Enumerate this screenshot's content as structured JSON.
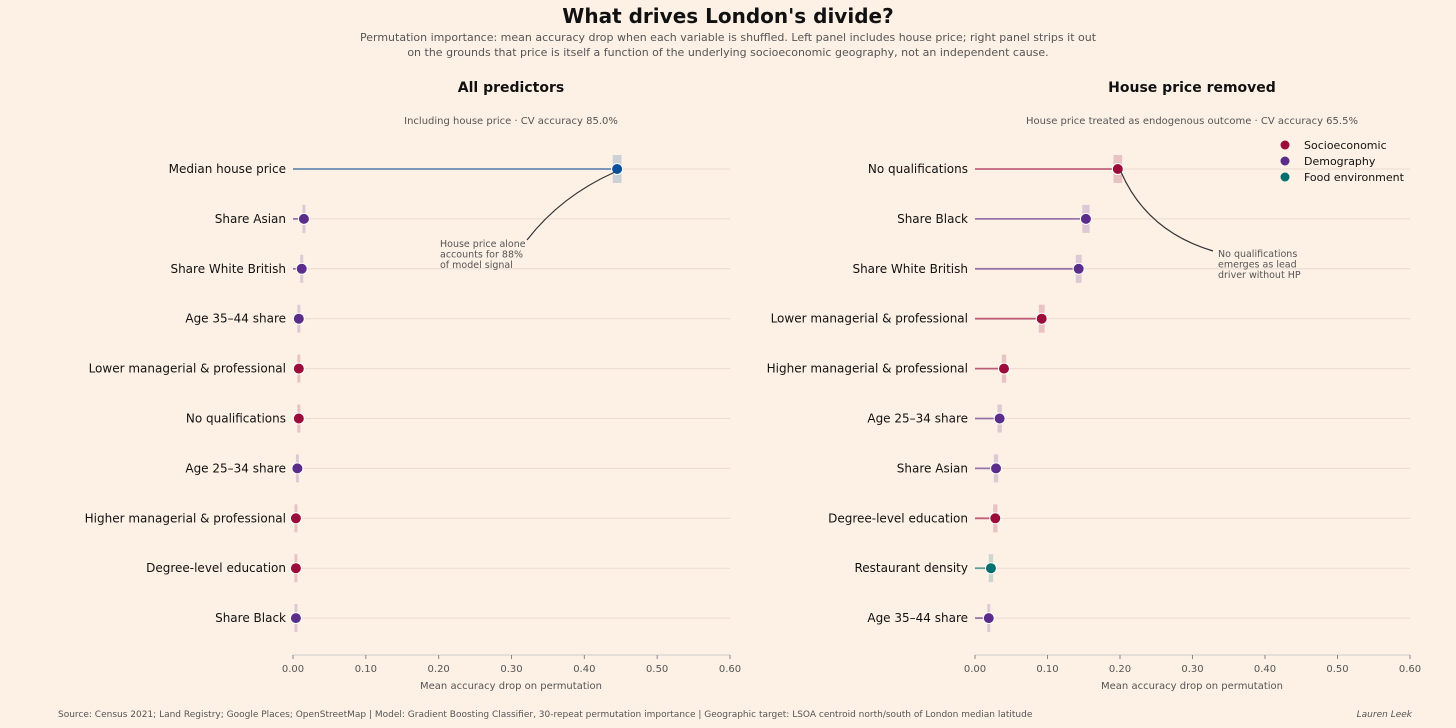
{
  "title": "What drives London's divide?",
  "subtitle_lines": [
    "Permutation importance: mean accuracy drop when each variable is shuffled.  Left panel includes house price; right panel strips it out",
    "on the grounds that price is itself a function of the underlying socioeconomic geography, not an independent cause."
  ],
  "footer": {
    "source": "Source: Census 2021; Land Registry; Google Places; OpenStreetMap  | Model: Gradient Boosting Classifier, 30-repeat permutation importance  | Geographic target: LSOA centroid north/south of London median latitude",
    "author": "Lauren Leek"
  },
  "colors": {
    "Socioeconomic": "#9b0c3b",
    "Demography": "#5b2d8a",
    "Food environment": "#00706e",
    "House price": "#0b4f9c"
  },
  "chart_data": [
    {
      "type": "dot",
      "title": "All predictors",
      "subtitle": "Including house price  ·  CV accuracy 85.0%",
      "xlabel": "Mean accuracy drop on permutation",
      "xlim": [
        0,
        0.6
      ],
      "xticks": [
        "0.00",
        "0.10",
        "0.20",
        "0.30",
        "0.40",
        "0.50",
        "0.60"
      ],
      "annotation": {
        "lines": [
          "House price alone",
          "accounts for 88%",
          "of model signal"
        ]
      },
      "items": [
        {
          "label": "Median house price",
          "value": 0.445,
          "std": 0.006,
          "group": "House price"
        },
        {
          "label": "Share Asian",
          "value": 0.015,
          "std": 0.002,
          "group": "Demography"
        },
        {
          "label": "Share White British",
          "value": 0.012,
          "std": 0.002,
          "group": "Demography"
        },
        {
          "label": "Age 35–44 share",
          "value": 0.008,
          "std": 0.002,
          "group": "Demography"
        },
        {
          "label": "Lower managerial & professional",
          "value": 0.008,
          "std": 0.002,
          "group": "Socioeconomic"
        },
        {
          "label": "No qualifications",
          "value": 0.008,
          "std": 0.002,
          "group": "Socioeconomic"
        },
        {
          "label": "Age 25–34 share",
          "value": 0.006,
          "std": 0.002,
          "group": "Demography"
        },
        {
          "label": "Higher managerial & professional",
          "value": 0.004,
          "std": 0.002,
          "group": "Socioeconomic"
        },
        {
          "label": "Degree-level education",
          "value": 0.004,
          "std": 0.002,
          "group": "Socioeconomic"
        },
        {
          "label": "Share Black",
          "value": 0.004,
          "std": 0.002,
          "group": "Demography"
        }
      ]
    },
    {
      "type": "dot",
      "title": "House price removed",
      "subtitle": "House price treated as endogenous outcome  ·  CV accuracy 65.5%",
      "xlabel": "Mean accuracy drop on permutation",
      "xlim": [
        0,
        0.6
      ],
      "xticks": [
        "0.00",
        "0.10",
        "0.20",
        "0.30",
        "0.40",
        "0.50",
        "0.60"
      ],
      "annotation": {
        "lines": [
          "No qualifications",
          "emerges as lead",
          "driver without HP"
        ]
      },
      "legend": [
        "Socioeconomic",
        "Demography",
        "Food environment"
      ],
      "items": [
        {
          "label": "No qualifications",
          "value": 0.197,
          "std": 0.006,
          "group": "Socioeconomic"
        },
        {
          "label": "Share Black",
          "value": 0.153,
          "std": 0.005,
          "group": "Demography"
        },
        {
          "label": "Share White British",
          "value": 0.143,
          "std": 0.004,
          "group": "Demography"
        },
        {
          "label": "Lower managerial & professional",
          "value": 0.092,
          "std": 0.004,
          "group": "Socioeconomic"
        },
        {
          "label": "Higher managerial & professional",
          "value": 0.04,
          "std": 0.003,
          "group": "Socioeconomic"
        },
        {
          "label": "Age 25–34 share",
          "value": 0.034,
          "std": 0.003,
          "group": "Demography"
        },
        {
          "label": "Share Asian",
          "value": 0.029,
          "std": 0.003,
          "group": "Demography"
        },
        {
          "label": "Degree-level education",
          "value": 0.028,
          "std": 0.003,
          "group": "Socioeconomic"
        },
        {
          "label": "Restaurant density",
          "value": 0.022,
          "std": 0.003,
          "group": "Food environment"
        },
        {
          "label": "Age 35–44 share",
          "value": 0.019,
          "std": 0.002,
          "group": "Demography"
        }
      ]
    }
  ]
}
